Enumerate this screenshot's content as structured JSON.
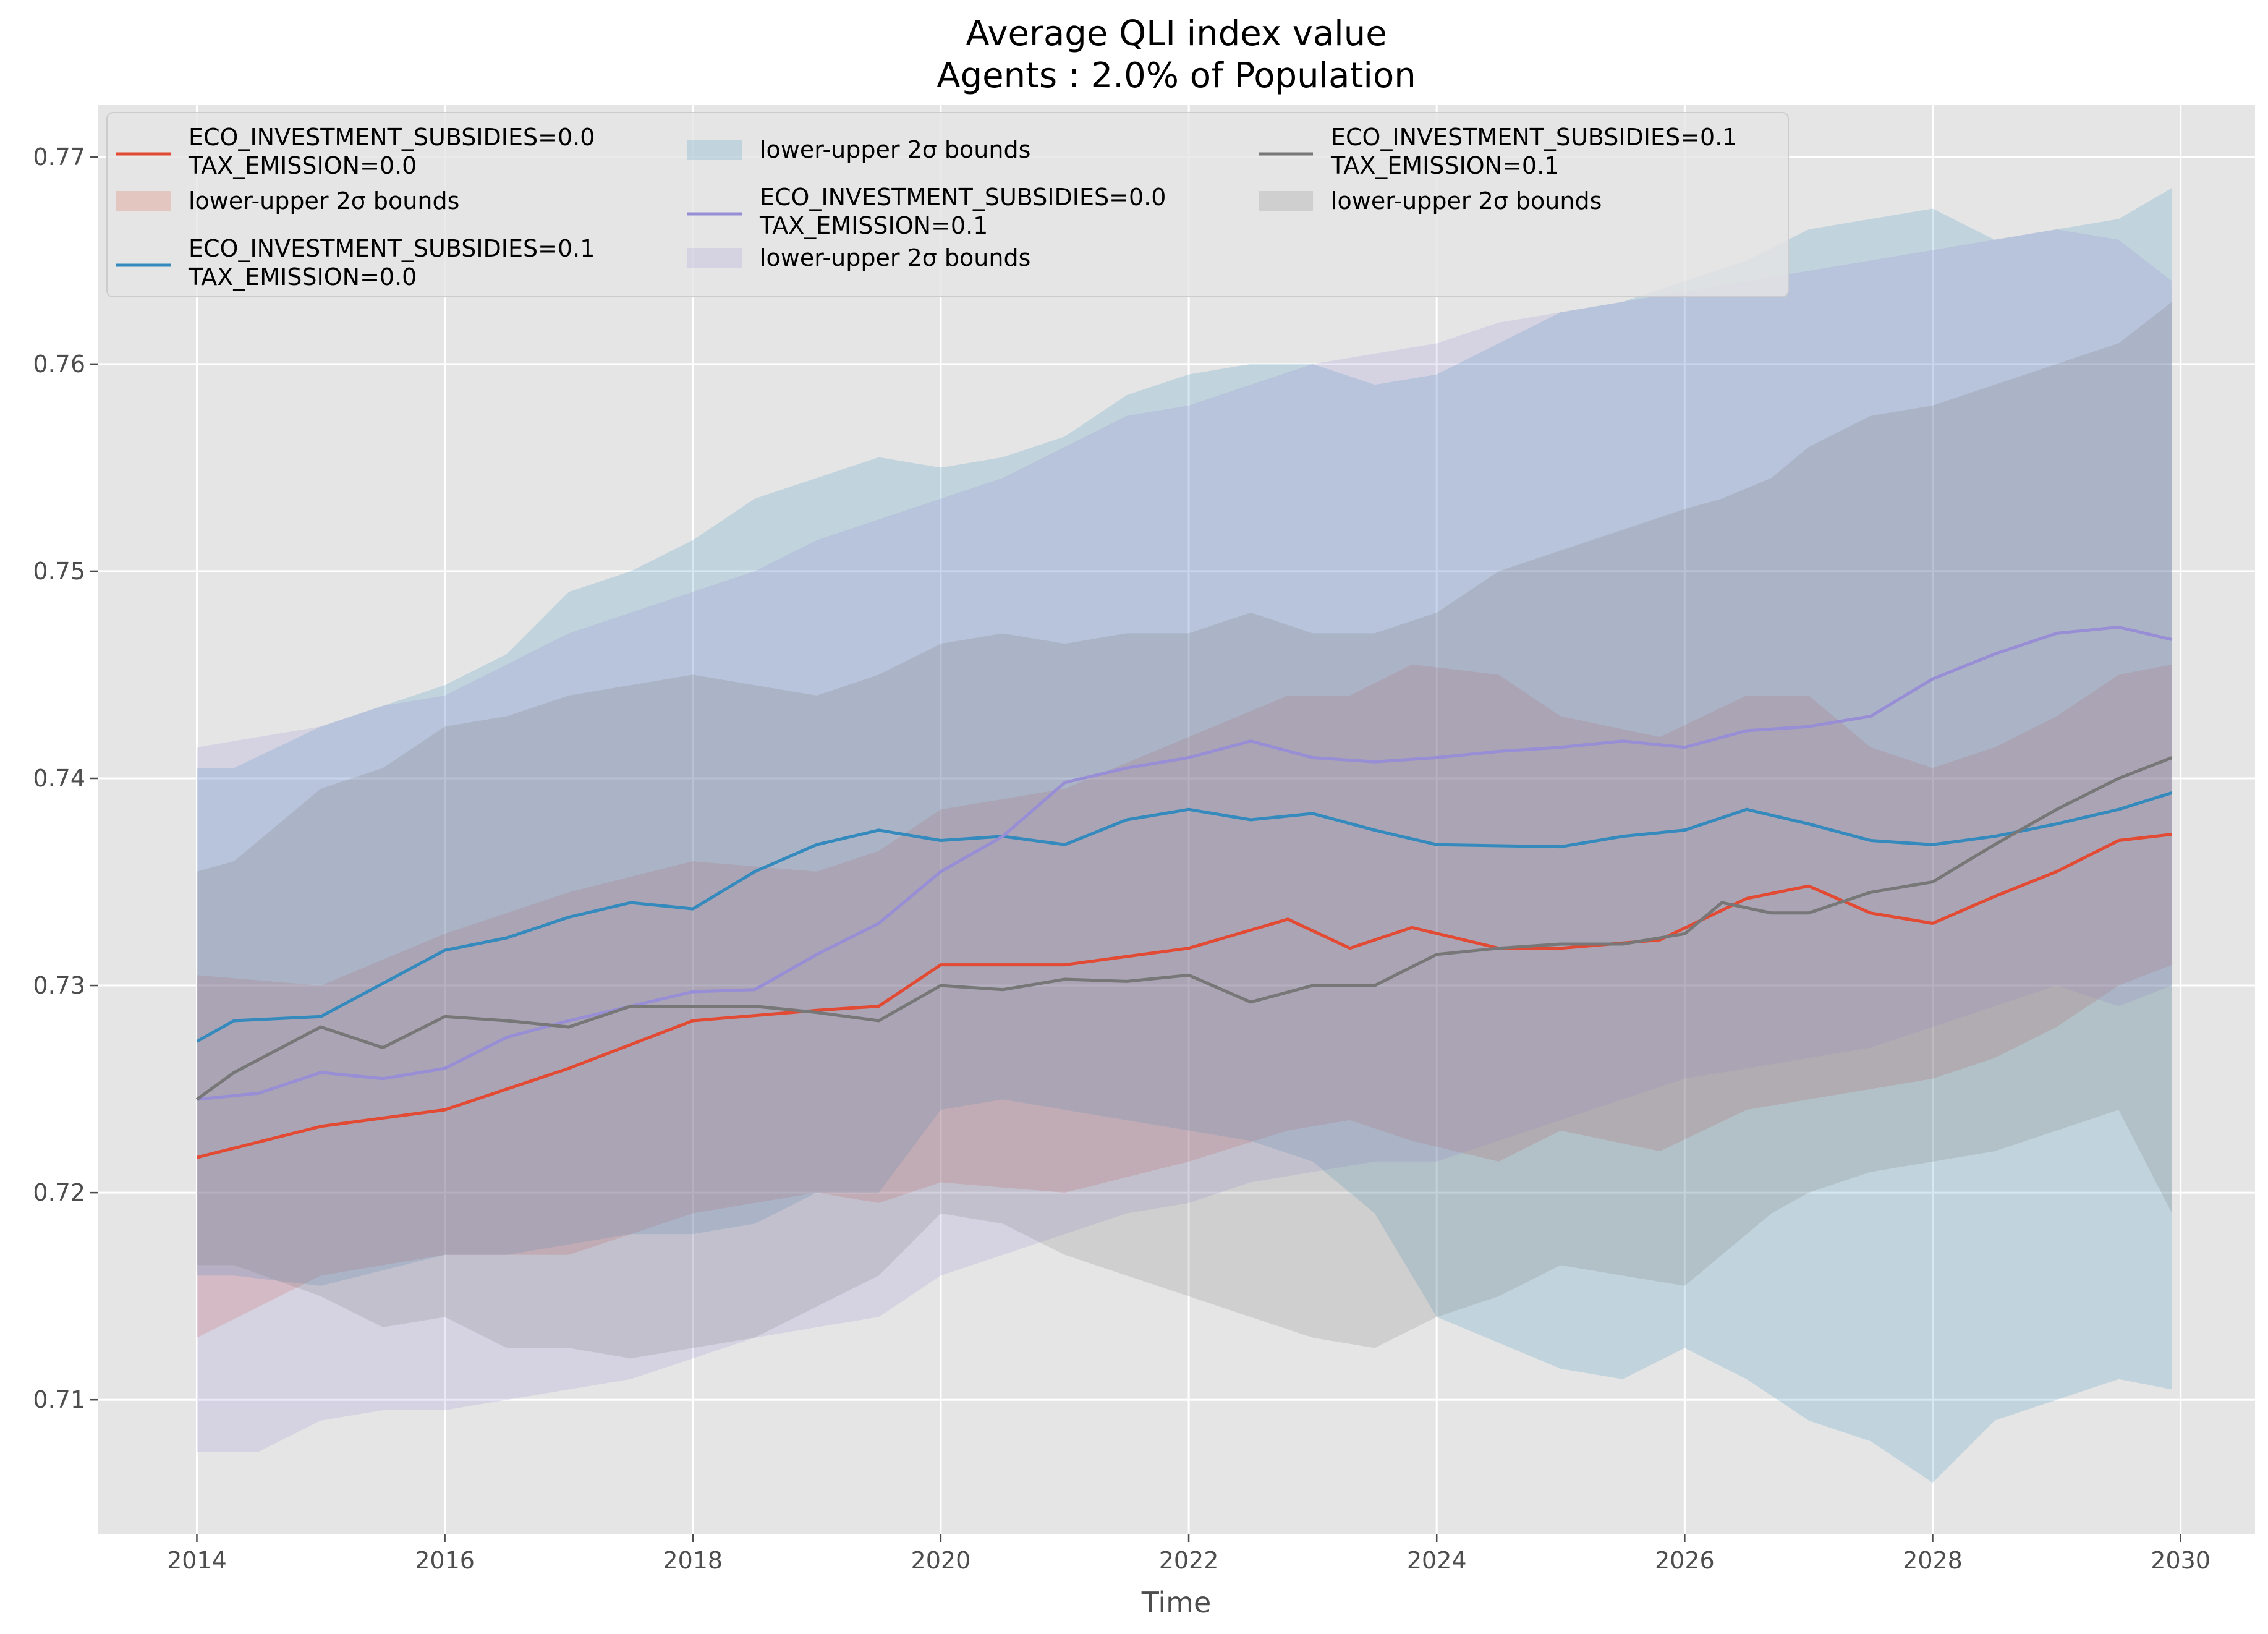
{
  "chart_data": {
    "type": "line",
    "title": "Average QLI index value",
    "subtitle": "Agents : 2.0% of Population",
    "xlabel": "Time",
    "ylabel": "",
    "xlim": [
      2013.2,
      2030.6
    ],
    "ylim": [
      0.7035,
      0.7725
    ],
    "xticks": [
      2014,
      2016,
      2018,
      2020,
      2022,
      2024,
      2026,
      2028,
      2030
    ],
    "yticks": [
      0.71,
      0.72,
      0.73,
      0.74,
      0.75,
      0.76,
      0.77
    ],
    "grid": true,
    "legend_position": "top-left",
    "band_label": "lower-upper 2σ bounds",
    "series": [
      {
        "name": "ECO_INVESTMENT_SUBSIDIES=0.0\nTAX_EMISSION=0.0",
        "label_lines": [
          "ECO_INVESTMENT_SUBSIDIES=0.0",
          "TAX_EMISSION=0.0"
        ],
        "color": "#E24A33",
        "x": [
          2014,
          2015,
          2016,
          2017,
          2018,
          2019,
          2019.5,
          2020,
          2021,
          2022,
          2022.8,
          2023.3,
          2023.8,
          2024.5,
          2025,
          2025.8,
          2026.5,
          2027,
          2027.5,
          2028,
          2028.5,
          2029,
          2029.5,
          2029.93
        ],
        "y": [
          0.7217,
          0.7232,
          0.724,
          0.726,
          0.7283,
          0.7288,
          0.729,
          0.731,
          0.731,
          0.7318,
          0.7332,
          0.7318,
          0.7328,
          0.7318,
          0.7318,
          0.7322,
          0.7342,
          0.7348,
          0.7335,
          0.733,
          0.7343,
          0.7355,
          0.737,
          0.7373
        ],
        "lower": [
          0.713,
          0.716,
          0.717,
          0.717,
          0.719,
          0.72,
          0.7195,
          0.7205,
          0.72,
          0.7215,
          0.723,
          0.7235,
          0.7225,
          0.7215,
          0.723,
          0.722,
          0.724,
          0.7245,
          0.725,
          0.7255,
          0.7265,
          0.728,
          0.73,
          0.731
        ],
        "upper": [
          0.7305,
          0.73,
          0.7325,
          0.7345,
          0.736,
          0.7355,
          0.7365,
          0.7385,
          0.7395,
          0.742,
          0.744,
          0.744,
          0.7455,
          0.745,
          0.743,
          0.742,
          0.744,
          0.744,
          0.7415,
          0.7405,
          0.7415,
          0.743,
          0.745,
          0.7455
        ]
      },
      {
        "name": "ECO_INVESTMENT_SUBSIDIES=0.1\nTAX_EMISSION=0.0",
        "label_lines": [
          "ECO_INVESTMENT_SUBSIDIES=0.1",
          "TAX_EMISSION=0.0"
        ],
        "color": "#348ABD",
        "x": [
          2014,
          2014.3,
          2015,
          2016,
          2016.5,
          2017,
          2017.5,
          2018,
          2018.5,
          2019,
          2019.5,
          2020,
          2020.5,
          2021,
          2021.5,
          2022,
          2022.5,
          2023,
          2023.5,
          2024,
          2025,
          2025.5,
          2026,
          2026.5,
          2027,
          2027.5,
          2028,
          2028.5,
          2029,
          2029.5,
          2029.93
        ],
        "y": [
          0.7273,
          0.7283,
          0.7285,
          0.7317,
          0.7323,
          0.7333,
          0.734,
          0.7337,
          0.7355,
          0.7368,
          0.7375,
          0.737,
          0.7372,
          0.7368,
          0.738,
          0.7385,
          0.738,
          0.7383,
          0.7375,
          0.7368,
          0.7367,
          0.7372,
          0.7375,
          0.7385,
          0.7378,
          0.737,
          0.7368,
          0.7372,
          0.7378,
          0.7385,
          0.7393
        ],
        "lower": [
          0.716,
          0.716,
          0.7155,
          0.717,
          0.717,
          0.7175,
          0.718,
          0.718,
          0.7185,
          0.72,
          0.72,
          0.724,
          0.7245,
          0.724,
          0.7235,
          0.723,
          0.7225,
          0.7215,
          0.719,
          0.714,
          0.7115,
          0.711,
          0.7125,
          0.711,
          0.709,
          0.708,
          0.706,
          0.709,
          0.71,
          0.711,
          0.7105
        ],
        "upper": [
          0.7405,
          0.7405,
          0.7425,
          0.7445,
          0.746,
          0.749,
          0.75,
          0.7515,
          0.7535,
          0.7545,
          0.7555,
          0.755,
          0.7555,
          0.7565,
          0.7585,
          0.7595,
          0.76,
          0.76,
          0.759,
          0.7595,
          0.7625,
          0.763,
          0.764,
          0.765,
          0.7665,
          0.767,
          0.7675,
          0.766,
          0.7665,
          0.767,
          0.7685
        ]
      },
      {
        "name": "ECO_INVESTMENT_SUBSIDIES=0.0\nTAX_EMISSION=0.1",
        "label_lines": [
          "ECO_INVESTMENT_SUBSIDIES=0.0",
          "TAX_EMISSION=0.1"
        ],
        "color": "#988ED5",
        "x": [
          2014,
          2014.5,
          2015,
          2015.5,
          2016,
          2016.5,
          2017,
          2017.5,
          2018,
          2018.5,
          2019,
          2019.5,
          2020,
          2020.5,
          2021,
          2021.5,
          2022,
          2022.5,
          2023,
          2023.5,
          2024,
          2024.5,
          2025,
          2025.5,
          2026,
          2026.5,
          2027,
          2027.5,
          2028,
          2028.5,
          2029,
          2029.5,
          2029.93
        ],
        "y": [
          0.7245,
          0.7248,
          0.7258,
          0.7255,
          0.726,
          0.7275,
          0.7283,
          0.729,
          0.7297,
          0.7298,
          0.7315,
          0.733,
          0.7355,
          0.7372,
          0.7398,
          0.7405,
          0.741,
          0.7418,
          0.741,
          0.7408,
          0.741,
          0.7413,
          0.7415,
          0.7418,
          0.7415,
          0.7423,
          0.7425,
          0.743,
          0.7448,
          0.746,
          0.747,
          0.7473,
          0.7467
        ],
        "lower": [
          0.7075,
          0.7075,
          0.709,
          0.7095,
          0.7095,
          0.71,
          0.7105,
          0.711,
          0.712,
          0.713,
          0.7135,
          0.714,
          0.716,
          0.717,
          0.718,
          0.719,
          0.7195,
          0.7205,
          0.721,
          0.7215,
          0.7215,
          0.7225,
          0.7235,
          0.7245,
          0.7255,
          0.726,
          0.7265,
          0.727,
          0.728,
          0.729,
          0.73,
          0.729,
          0.73
        ],
        "upper": [
          0.7415,
          0.742,
          0.7425,
          0.7435,
          0.744,
          0.7455,
          0.747,
          0.748,
          0.749,
          0.75,
          0.7515,
          0.7525,
          0.7535,
          0.7545,
          0.756,
          0.7575,
          0.758,
          0.759,
          0.76,
          0.7605,
          0.761,
          0.762,
          0.7625,
          0.763,
          0.7635,
          0.764,
          0.7645,
          0.765,
          0.7655,
          0.766,
          0.7665,
          0.766,
          0.764
        ]
      },
      {
        "name": "ECO_INVESTMENT_SUBSIDIES=0.1\nTAX_EMISSION=0.1",
        "label_lines": [
          "ECO_INVESTMENT_SUBSIDIES=0.1",
          "TAX_EMISSION=0.1"
        ],
        "color": "#777777",
        "x": [
          2014,
          2014.3,
          2015,
          2015.5,
          2016,
          2016.5,
          2017,
          2017.5,
          2018,
          2018.5,
          2019,
          2019.5,
          2020,
          2020.5,
          2021,
          2021.5,
          2022,
          2022.5,
          2023,
          2023.5,
          2024,
          2024.5,
          2025,
          2025.5,
          2026,
          2026.3,
          2026.7,
          2027,
          2027.5,
          2028,
          2028.5,
          2029,
          2029.5,
          2029.93
        ],
        "y": [
          0.7245,
          0.7258,
          0.728,
          0.727,
          0.7285,
          0.7283,
          0.728,
          0.729,
          0.729,
          0.729,
          0.7287,
          0.7283,
          0.73,
          0.7298,
          0.7303,
          0.7302,
          0.7305,
          0.7292,
          0.73,
          0.73,
          0.7315,
          0.7318,
          0.732,
          0.732,
          0.7325,
          0.734,
          0.7335,
          0.7335,
          0.7345,
          0.735,
          0.7368,
          0.7385,
          0.74,
          0.741
        ],
        "lower": [
          0.7165,
          0.7165,
          0.715,
          0.7135,
          0.714,
          0.7125,
          0.7125,
          0.712,
          0.7125,
          0.713,
          0.7145,
          0.716,
          0.719,
          0.7185,
          0.717,
          0.716,
          0.715,
          0.714,
          0.713,
          0.7125,
          0.714,
          0.715,
          0.7165,
          0.716,
          0.7155,
          0.717,
          0.719,
          0.72,
          0.721,
          0.7215,
          0.722,
          0.723,
          0.724,
          0.719
        ],
        "upper": [
          0.7355,
          0.736,
          0.7395,
          0.7405,
          0.7425,
          0.743,
          0.744,
          0.7445,
          0.745,
          0.7445,
          0.744,
          0.745,
          0.7465,
          0.747,
          0.7465,
          0.747,
          0.747,
          0.748,
          0.747,
          0.747,
          0.748,
          0.75,
          0.751,
          0.752,
          0.753,
          0.7535,
          0.7545,
          0.756,
          0.7575,
          0.758,
          0.759,
          0.76,
          0.761,
          0.763
        ]
      }
    ]
  }
}
